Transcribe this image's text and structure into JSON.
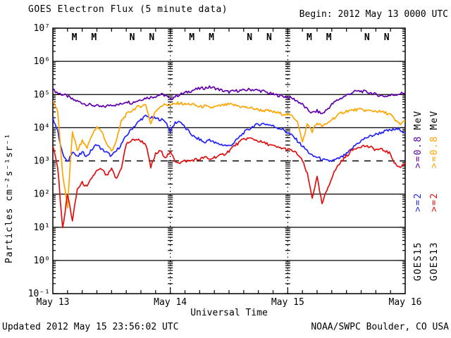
{
  "header": {
    "title": "GOES Electron Flux (5 minute data)",
    "begin_label": "Begin: 2012 May 13 0000 UTC"
  },
  "footer": {
    "updated": "Updated 2012 May 15 23:56:02 UTC",
    "credit": "NOAA/SWPC Boulder, CO USA"
  },
  "y_axis": {
    "label": "Particles cm⁻²s⁻¹sr⁻¹",
    "tick_labels": [
      "10⁷",
      "10⁶",
      "10⁵",
      "10⁴",
      "10³",
      "10²",
      "10¹",
      "10⁰",
      "10⁻¹"
    ],
    "tick_exponents": [
      7,
      6,
      5,
      4,
      3,
      2,
      1,
      0,
      -1
    ]
  },
  "x_axis": {
    "label": "Universal Time",
    "tick_labels": [
      "May 13",
      "May 14",
      "May 15",
      "May 16"
    ],
    "tick_hours": [
      0,
      24,
      48,
      72
    ],
    "minor_tick_step_hours": 3
  },
  "legend": {
    "goes15": {
      "sat": "GOES15",
      "e2": ">=2",
      "e08": ">=0.8",
      "unit": "MeV"
    },
    "goes13": {
      "sat": "GOES13",
      "e2": ">=2",
      "e08": ">=0.8",
      "unit": "MeV"
    }
  },
  "colors": {
    "goes15_e08": "#6200ae",
    "goes15_e2": "#2222ff",
    "goes13_e08": "#ffa500",
    "goes13_e2": "#e01010",
    "axis": "#000000",
    "background": "#ffffff"
  },
  "satellite_markers": {
    "labels": [
      "M",
      "M",
      "N",
      "N"
    ],
    "color_keys": [
      "goes13_e2",
      "goes15_e2",
      "goes13_e2",
      "goes15_e2"
    ],
    "hours_within_day": [
      4.4,
      8.4,
      16.2,
      20.2
    ],
    "days": 3
  },
  "chart_data": {
    "type": "line",
    "title": "GOES Electron Flux (5 minute data)",
    "xlabel": "Universal Time",
    "ylabel": "Particles cm⁻²s⁻¹sr⁻¹",
    "x_unit": "hours since 2012 May 13 0000 UTC",
    "x_range": [
      0,
      72
    ],
    "x_sample_step_hours": 1,
    "y_scale": "log10",
    "y_range": [
      0.1,
      10000000
    ],
    "grid": "horizontal-decades",
    "grid_exponents_solid": [
      6,
      5,
      4,
      2,
      1,
      0
    ],
    "threshold_dashed_exponent": 3,
    "day_boundary_hours": [
      24,
      48
    ],
    "legend_position": "right-rotated",
    "series": [
      {
        "name": "GOES15 >=0.8 MeV",
        "satellite": "GOES15",
        "channel": ">=0.8 MeV",
        "color_key": "goes15_e08",
        "values": [
          140000,
          112000,
          100000,
          89000,
          71000,
          63000,
          56000,
          50000,
          48000,
          45000,
          42000,
          45000,
          50000,
          48000,
          52000,
          63000,
          56000,
          63000,
          71000,
          79000,
          83000,
          89000,
          100000,
          95000,
          71000,
          89000,
          100000,
          112000,
          126000,
          141000,
          151000,
          158000,
          166000,
          158000,
          141000,
          126000,
          120000,
          126000,
          132000,
          132000,
          141000,
          141000,
          132000,
          126000,
          112000,
          100000,
          95000,
          89000,
          83000,
          76000,
          63000,
          50000,
          35000,
          28000,
          32000,
          26000,
          35000,
          50000,
          66000,
          79000,
          95000,
          112000,
          126000,
          126000,
          120000,
          112000,
          100000,
          93000,
          89000,
          95000,
          100000,
          107000,
          112000
        ]
      },
      {
        "name": "GOES15 >=2 MeV",
        "satellite": "GOES15",
        "channel": ">=2 MeV",
        "color_key": "goes15_e2",
        "values": [
          20000,
          7900,
          1600,
          890,
          2000,
          1300,
          1800,
          1400,
          2200,
          3200,
          2200,
          1800,
          1400,
          2000,
          3200,
          5600,
          8900,
          12600,
          17800,
          22400,
          20000,
          19000,
          17800,
          15800,
          7900,
          14100,
          15800,
          10000,
          7100,
          5000,
          4500,
          3500,
          4500,
          3500,
          3200,
          3000,
          2800,
          3500,
          5000,
          7100,
          8900,
          11200,
          12600,
          13200,
          12600,
          11200,
          10000,
          8900,
          7100,
          5600,
          4000,
          2800,
          2000,
          1400,
          1300,
          1100,
          1000,
          1000,
          1100,
          1300,
          1600,
          2200,
          3200,
          4000,
          5000,
          5600,
          6300,
          7100,
          7900,
          8300,
          8900,
          8900,
          7100
        ]
      },
      {
        "name": "GOES13 >=0.8 MeV",
        "satellite": "GOES13",
        "channel": ">=0.8 MeV",
        "color_key": "goes13_e08",
        "values": [
          63000,
          32000,
          400,
          40,
          7900,
          2000,
          4000,
          2500,
          6300,
          10000,
          7900,
          3200,
          2000,
          4000,
          16000,
          25000,
          32000,
          40000,
          45000,
          50000,
          13000,
          32000,
          45000,
          50000,
          48000,
          52000,
          56000,
          50000,
          52000,
          48000,
          42000,
          45000,
          40000,
          42000,
          45000,
          48000,
          50000,
          48000,
          45000,
          42000,
          40000,
          38000,
          35000,
          33000,
          32000,
          30000,
          28000,
          26000,
          25000,
          22000,
          16000,
          3500,
          13000,
          7900,
          14000,
          11000,
          13000,
          18000,
          22000,
          28000,
          32000,
          33000,
          35000,
          35000,
          33000,
          32000,
          32000,
          30000,
          28000,
          25000,
          16000,
          13000,
          16000
        ]
      },
      {
        "name": "GOES13 >=2 MeV",
        "satellite": "GOES13",
        "channel": ">=2 MeV",
        "color_key": "goes13_e2",
        "values": [
          2800,
          630,
          9,
          100,
          16,
          140,
          220,
          160,
          320,
          500,
          560,
          350,
          560,
          280,
          630,
          3200,
          4000,
          4500,
          4000,
          3200,
          630,
          1600,
          2000,
          1300,
          1800,
          1000,
          890,
          1000,
          1000,
          1100,
          1100,
          1300,
          1100,
          1300,
          1400,
          1600,
          2000,
          2800,
          3500,
          4500,
          4800,
          4500,
          4000,
          3500,
          3200,
          2800,
          2500,
          2400,
          2200,
          2000,
          1600,
          1000,
          400,
          79,
          320,
          50,
          130,
          320,
          630,
          1000,
          1400,
          2000,
          2500,
          2800,
          2800,
          2500,
          2200,
          2200,
          2000,
          1600,
          790,
          630,
          890
        ]
      }
    ]
  }
}
